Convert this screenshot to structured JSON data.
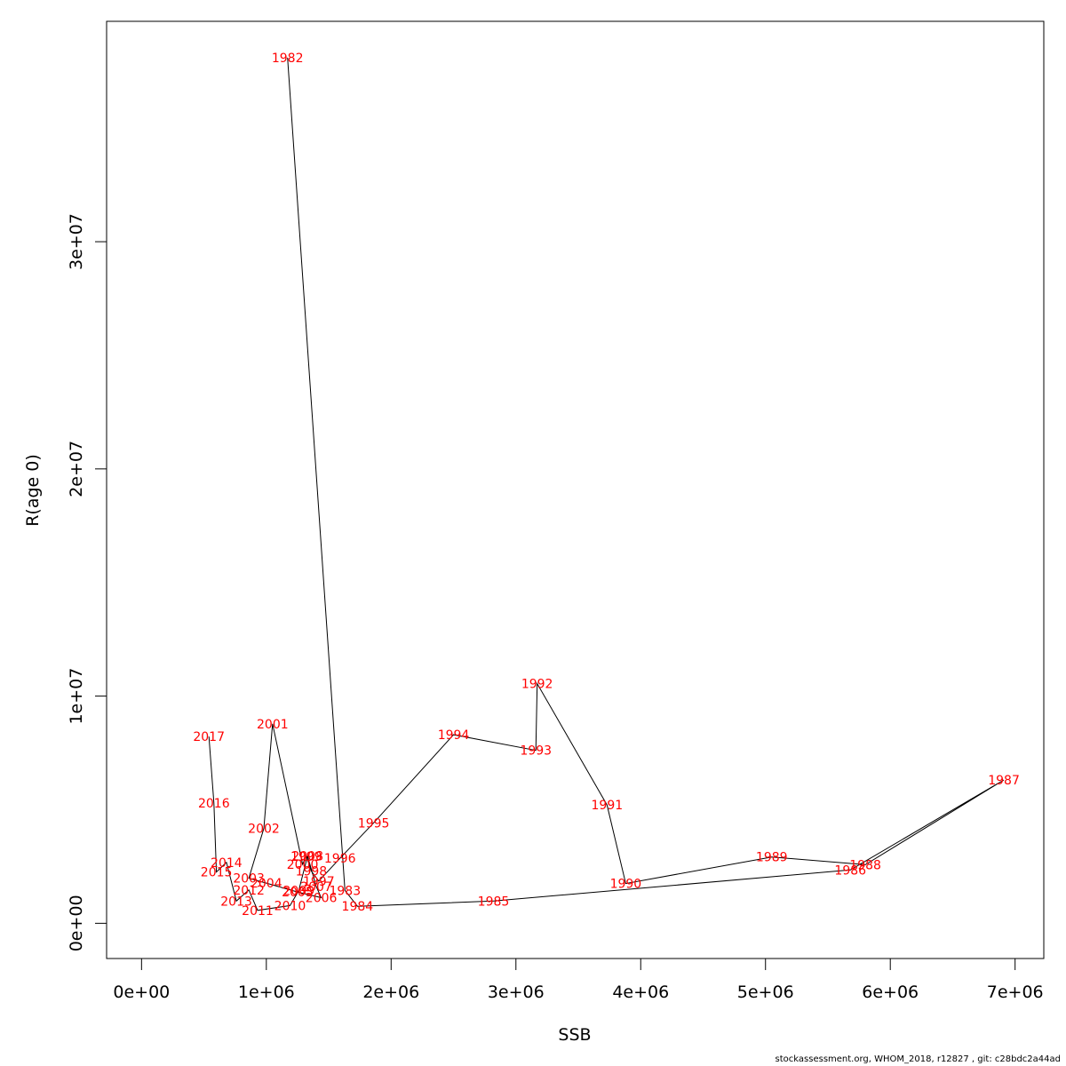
{
  "chart_data": {
    "type": "line",
    "title": "",
    "xlabel": "SSB",
    "ylabel": "R(age 0)",
    "xlim": [
      -280000,
      7230000
    ],
    "ylim": [
      -1550000,
      39700000
    ],
    "x_ticks": [
      {
        "value": 0,
        "label": "0e+00"
      },
      {
        "value": 1000000,
        "label": "1e+06"
      },
      {
        "value": 2000000,
        "label": "2e+06"
      },
      {
        "value": 3000000,
        "label": "3e+06"
      },
      {
        "value": 4000000,
        "label": "4e+06"
      },
      {
        "value": 5000000,
        "label": "5e+06"
      },
      {
        "value": 6000000,
        "label": "6e+06"
      },
      {
        "value": 7000000,
        "label": "7e+06"
      }
    ],
    "y_ticks": [
      {
        "value": 0,
        "label": "0e+00"
      },
      {
        "value": 10000000,
        "label": "1e+07"
      },
      {
        "value": 20000000,
        "label": "2e+07"
      },
      {
        "value": 30000000,
        "label": "3e+07"
      }
    ],
    "grid": false,
    "line_color": "#000000",
    "label_color": "#ff0000",
    "points": [
      {
        "year": "1982",
        "ssb": 1170000,
        "r": 38100000
      },
      {
        "year": "1983",
        "ssb": 1630000,
        "r": 1450000
      },
      {
        "year": "1984",
        "ssb": 1730000,
        "r": 750000
      },
      {
        "year": "1985",
        "ssb": 2820000,
        "r": 980000
      },
      {
        "year": "1986",
        "ssb": 5680000,
        "r": 2350000
      },
      {
        "year": "1987",
        "ssb": 6910000,
        "r": 6310000
      },
      {
        "year": "1988",
        "ssb": 5800000,
        "r": 2580000
      },
      {
        "year": "1989",
        "ssb": 5050000,
        "r": 2920000
      },
      {
        "year": "1990",
        "ssb": 3880000,
        "r": 1750000
      },
      {
        "year": "1991",
        "ssb": 3730000,
        "r": 5210000
      },
      {
        "year": "1992",
        "ssb": 3170000,
        "r": 10550000
      },
      {
        "year": "1993",
        "ssb": 3160000,
        "r": 7610000
      },
      {
        "year": "1994",
        "ssb": 2500000,
        "r": 8300000
      },
      {
        "year": "1995",
        "ssb": 1860000,
        "r": 4420000
      },
      {
        "year": "1996",
        "ssb": 1590000,
        "r": 2860000
      },
      {
        "year": "1997",
        "ssb": 1420000,
        "r": 1860000
      },
      {
        "year": "1998",
        "ssb": 1360000,
        "r": 2300000
      },
      {
        "year": "1999",
        "ssb": 1320000,
        "r": 2950000
      },
      {
        "year": "2000",
        "ssb": 1290000,
        "r": 2600000
      },
      {
        "year": "2001",
        "ssb": 1050000,
        "r": 8780000
      },
      {
        "year": "2002",
        "ssb": 980000,
        "r": 4180000
      },
      {
        "year": "2003",
        "ssb": 860000,
        "r": 1980000
      },
      {
        "year": "2004",
        "ssb": 1000000,
        "r": 1770000
      },
      {
        "year": "2005",
        "ssb": 1250000,
        "r": 1380000
      },
      {
        "year": "2006",
        "ssb": 1440000,
        "r": 1130000
      },
      {
        "year": "2007",
        "ssb": 1400000,
        "r": 1620000
      },
      {
        "year": "2008",
        "ssb": 1330000,
        "r": 2960000
      },
      {
        "year": "2009",
        "ssb": 1260000,
        "r": 1440000
      },
      {
        "year": "2010",
        "ssb": 1190000,
        "r": 780000
      },
      {
        "year": "2011",
        "ssb": 930000,
        "r": 570000
      },
      {
        "year": "2012",
        "ssb": 860000,
        "r": 1470000
      },
      {
        "year": "2013",
        "ssb": 760000,
        "r": 980000
      },
      {
        "year": "2014",
        "ssb": 680000,
        "r": 2680000
      },
      {
        "year": "2015",
        "ssb": 600000,
        "r": 2260000
      },
      {
        "year": "2016",
        "ssb": 580000,
        "r": 5290000
      },
      {
        "year": "2017",
        "ssb": 540000,
        "r": 8220000
      }
    ]
  },
  "footer": "stockassessment.org, WHOM_2018, r12827 , git: c28bdc2a44ad"
}
